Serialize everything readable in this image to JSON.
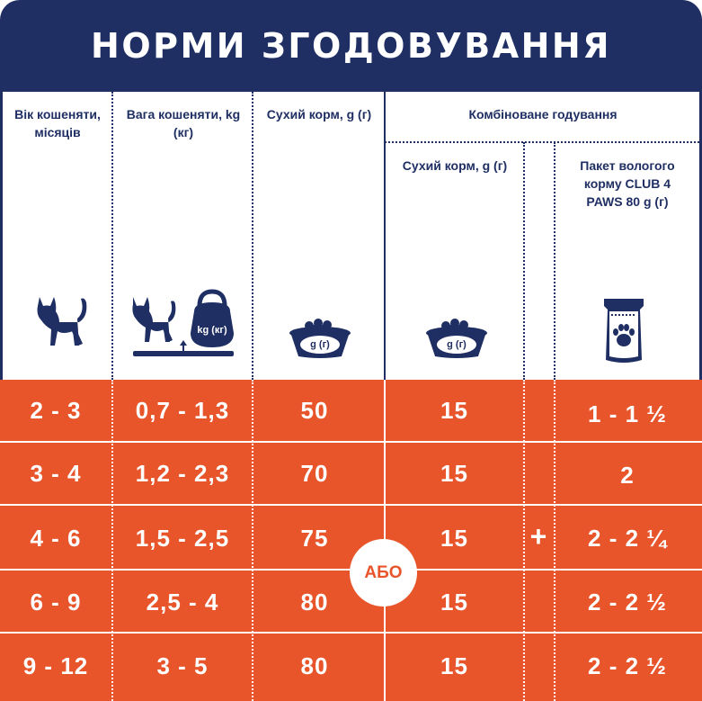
{
  "title": "НОРМИ ЗГОДОВУВАННЯ",
  "headers": {
    "age": "Вік кошеняти, місяців",
    "weight": "Вага кошеняти, kg (кг)",
    "dry": "Сухий корм, g (г)",
    "combined": "Комбіноване годування",
    "combined_dry": "Сухий корм, g (г)",
    "wet": "Пакет вологого корму CLUB 4 PAWS 80 g (г)"
  },
  "icons": {
    "kettlebell_label": "kg (кг)",
    "bowl_label": "g (г)"
  },
  "rows": [
    {
      "age": "2 - 3",
      "weight": "0,7 - 1,3",
      "dry": "50",
      "combined_dry": "15",
      "wet": "1 - 1 ½"
    },
    {
      "age": "3 - 4",
      "weight": "1,2 - 2,3",
      "dry": "70",
      "combined_dry": "15",
      "wet": "2"
    },
    {
      "age": "4 - 6",
      "weight": "1,5 - 2,5",
      "dry": "75",
      "combined_dry": "15",
      "wet": "2 - 2 ¼"
    },
    {
      "age": "6 - 9",
      "weight": "2,5 - 4",
      "dry": "80",
      "combined_dry": "15",
      "wet": "2 - 2 ½"
    },
    {
      "age": "9 - 12",
      "weight": "3 - 5",
      "dry": "80",
      "combined_dry": "15",
      "wet": "2 - 2 ½"
    }
  ],
  "or_label": "АБО",
  "plus_label": "+",
  "colors": {
    "navy": "#1f2f63",
    "orange": "#e8552b",
    "white": "#ffffff"
  }
}
